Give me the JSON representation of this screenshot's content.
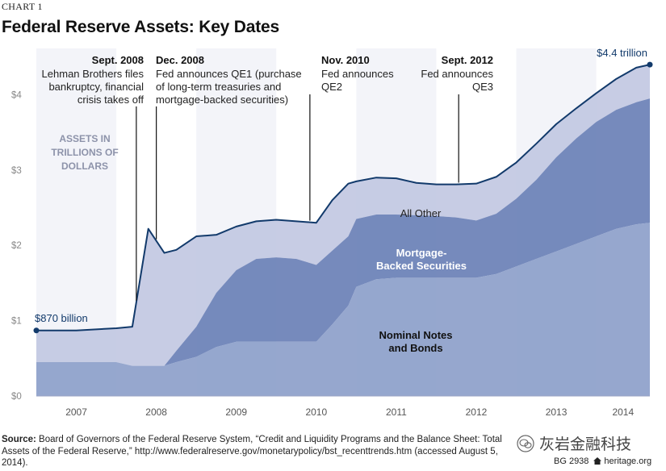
{
  "header": {
    "chart_number": "CHART 1",
    "title": "Federal Reserve Assets: Key Dates"
  },
  "chart_data": {
    "type": "area",
    "title": "Federal Reserve Assets: Key Dates",
    "units_label": [
      "ASSETS IN",
      "TRILLIONS OF",
      "DOLLARS"
    ],
    "x_ticks": [
      "2007",
      "2008",
      "2009",
      "2010",
      "2011",
      "2012",
      "2013",
      "2014"
    ],
    "y_ticks": [
      "$0",
      "$1",
      "$2",
      "$3",
      "$4"
    ],
    "ylim": [
      0,
      4.5
    ],
    "xlim": [
      2007.0,
      2014.67
    ],
    "grid": false,
    "series": [
      {
        "name": "Nominal Notes and Bonds",
        "label_lines": [
          "Nominal Notes",
          "and Bonds"
        ],
        "color": "#8d9fca",
        "x": [
          2007.0,
          2007.5,
          2008.0,
          2008.2,
          2008.4,
          2008.6,
          2008.75,
          2009.0,
          2009.25,
          2009.5,
          2009.75,
          2010.0,
          2010.25,
          2010.5,
          2010.7,
          2010.9,
          2011.0,
          2011.25,
          2011.5,
          2011.75,
          2012.0,
          2012.25,
          2012.5,
          2012.75,
          2013.0,
          2013.25,
          2013.5,
          2013.75,
          2014.0,
          2014.25,
          2014.5,
          2014.67
        ],
        "values": [
          0.45,
          0.45,
          0.45,
          0.4,
          0.4,
          0.4,
          0.45,
          0.52,
          0.65,
          0.72,
          0.72,
          0.72,
          0.72,
          0.72,
          0.95,
          1.2,
          1.45,
          1.55,
          1.57,
          1.57,
          1.57,
          1.57,
          1.57,
          1.62,
          1.72,
          1.82,
          1.92,
          2.02,
          2.12,
          2.22,
          2.28,
          2.3
        ]
      },
      {
        "name": "Mortgage-Backed Securities",
        "label_lines": [
          "Mortgage-",
          "Backed Securities"
        ],
        "color": "#6a80b6",
        "x": [
          2007.0,
          2007.5,
          2008.0,
          2008.2,
          2008.4,
          2008.6,
          2008.75,
          2009.0,
          2009.25,
          2009.5,
          2009.75,
          2010.0,
          2010.25,
          2010.5,
          2010.7,
          2010.9,
          2011.0,
          2011.25,
          2011.5,
          2011.75,
          2012.0,
          2012.25,
          2012.5,
          2012.75,
          2013.0,
          2013.25,
          2013.5,
          2013.75,
          2014.0,
          2014.25,
          2014.5,
          2014.67
        ],
        "values": [
          0,
          0,
          0,
          0,
          0,
          0,
          0.15,
          0.4,
          0.72,
          0.95,
          1.1,
          1.12,
          1.1,
          1.02,
          0.98,
          0.92,
          0.9,
          0.86,
          0.84,
          0.83,
          0.82,
          0.8,
          0.76,
          0.8,
          0.9,
          1.05,
          1.25,
          1.4,
          1.52,
          1.58,
          1.62,
          1.65
        ]
      },
      {
        "name": "All Other",
        "label_lines": [
          "All Other"
        ],
        "color": "#c2c8e2",
        "x": [
          2007.0,
          2007.5,
          2008.0,
          2008.2,
          2008.4,
          2008.6,
          2008.75,
          2009.0,
          2009.25,
          2009.5,
          2009.75,
          2010.0,
          2010.25,
          2010.5,
          2010.7,
          2010.9,
          2011.0,
          2011.25,
          2011.5,
          2011.75,
          2012.0,
          2012.25,
          2012.5,
          2012.75,
          2013.0,
          2013.25,
          2013.5,
          2013.75,
          2014.0,
          2014.25,
          2014.5,
          2014.67
        ],
        "values": [
          0.42,
          0.42,
          0.45,
          0.52,
          1.82,
          1.5,
          1.34,
          1.2,
          0.77,
          0.58,
          0.5,
          0.5,
          0.5,
          0.56,
          0.67,
          0.7,
          0.5,
          0.49,
          0.48,
          0.43,
          0.42,
          0.44,
          0.49,
          0.49,
          0.48,
          0.48,
          0.44,
          0.4,
          0.38,
          0.41,
          0.46,
          0.45
        ]
      }
    ],
    "total_line": {
      "color": "#123a6b",
      "start_label": "$870 billion",
      "end_label": "$4.4 trillion",
      "start_value": 0.87,
      "end_value": 4.4
    },
    "annotations": [
      {
        "x": 2008.25,
        "label_align": "end",
        "date": "Sept. 2008",
        "lines": [
          "Lehman Brothers files",
          "bankruptcy, financial",
          "crisis takes off"
        ]
      },
      {
        "x": 2008.5,
        "label_align": "start",
        "date": "Dec. 2008",
        "lines": [
          "Fed announces QE1 (purchase",
          "of long-term treasuries and",
          "mortgage-backed securities)"
        ]
      },
      {
        "x": 2010.42,
        "label_align": "start",
        "date": "Nov. 2010",
        "lines": [
          "Fed announces",
          "QE2"
        ]
      },
      {
        "x": 2012.28,
        "label_align": "end",
        "date": "Sept. 2012",
        "lines": [
          "Fed announces",
          "QE3"
        ]
      }
    ]
  },
  "footer": {
    "source_label": "Source:",
    "source_text": "Board of Governors of the Federal Reserve System, “Credit and Liquidity Programs and the Balance Sheet: Total Assets of the Federal Reserve,” http://www.federalreserve.gov/monetarypolicy/bst_recenttrends.htm (accessed August 5, 2014).",
    "watermark_text": "灰岩金融科技",
    "report_code": "BG 2938",
    "site": "heritage.org"
  }
}
